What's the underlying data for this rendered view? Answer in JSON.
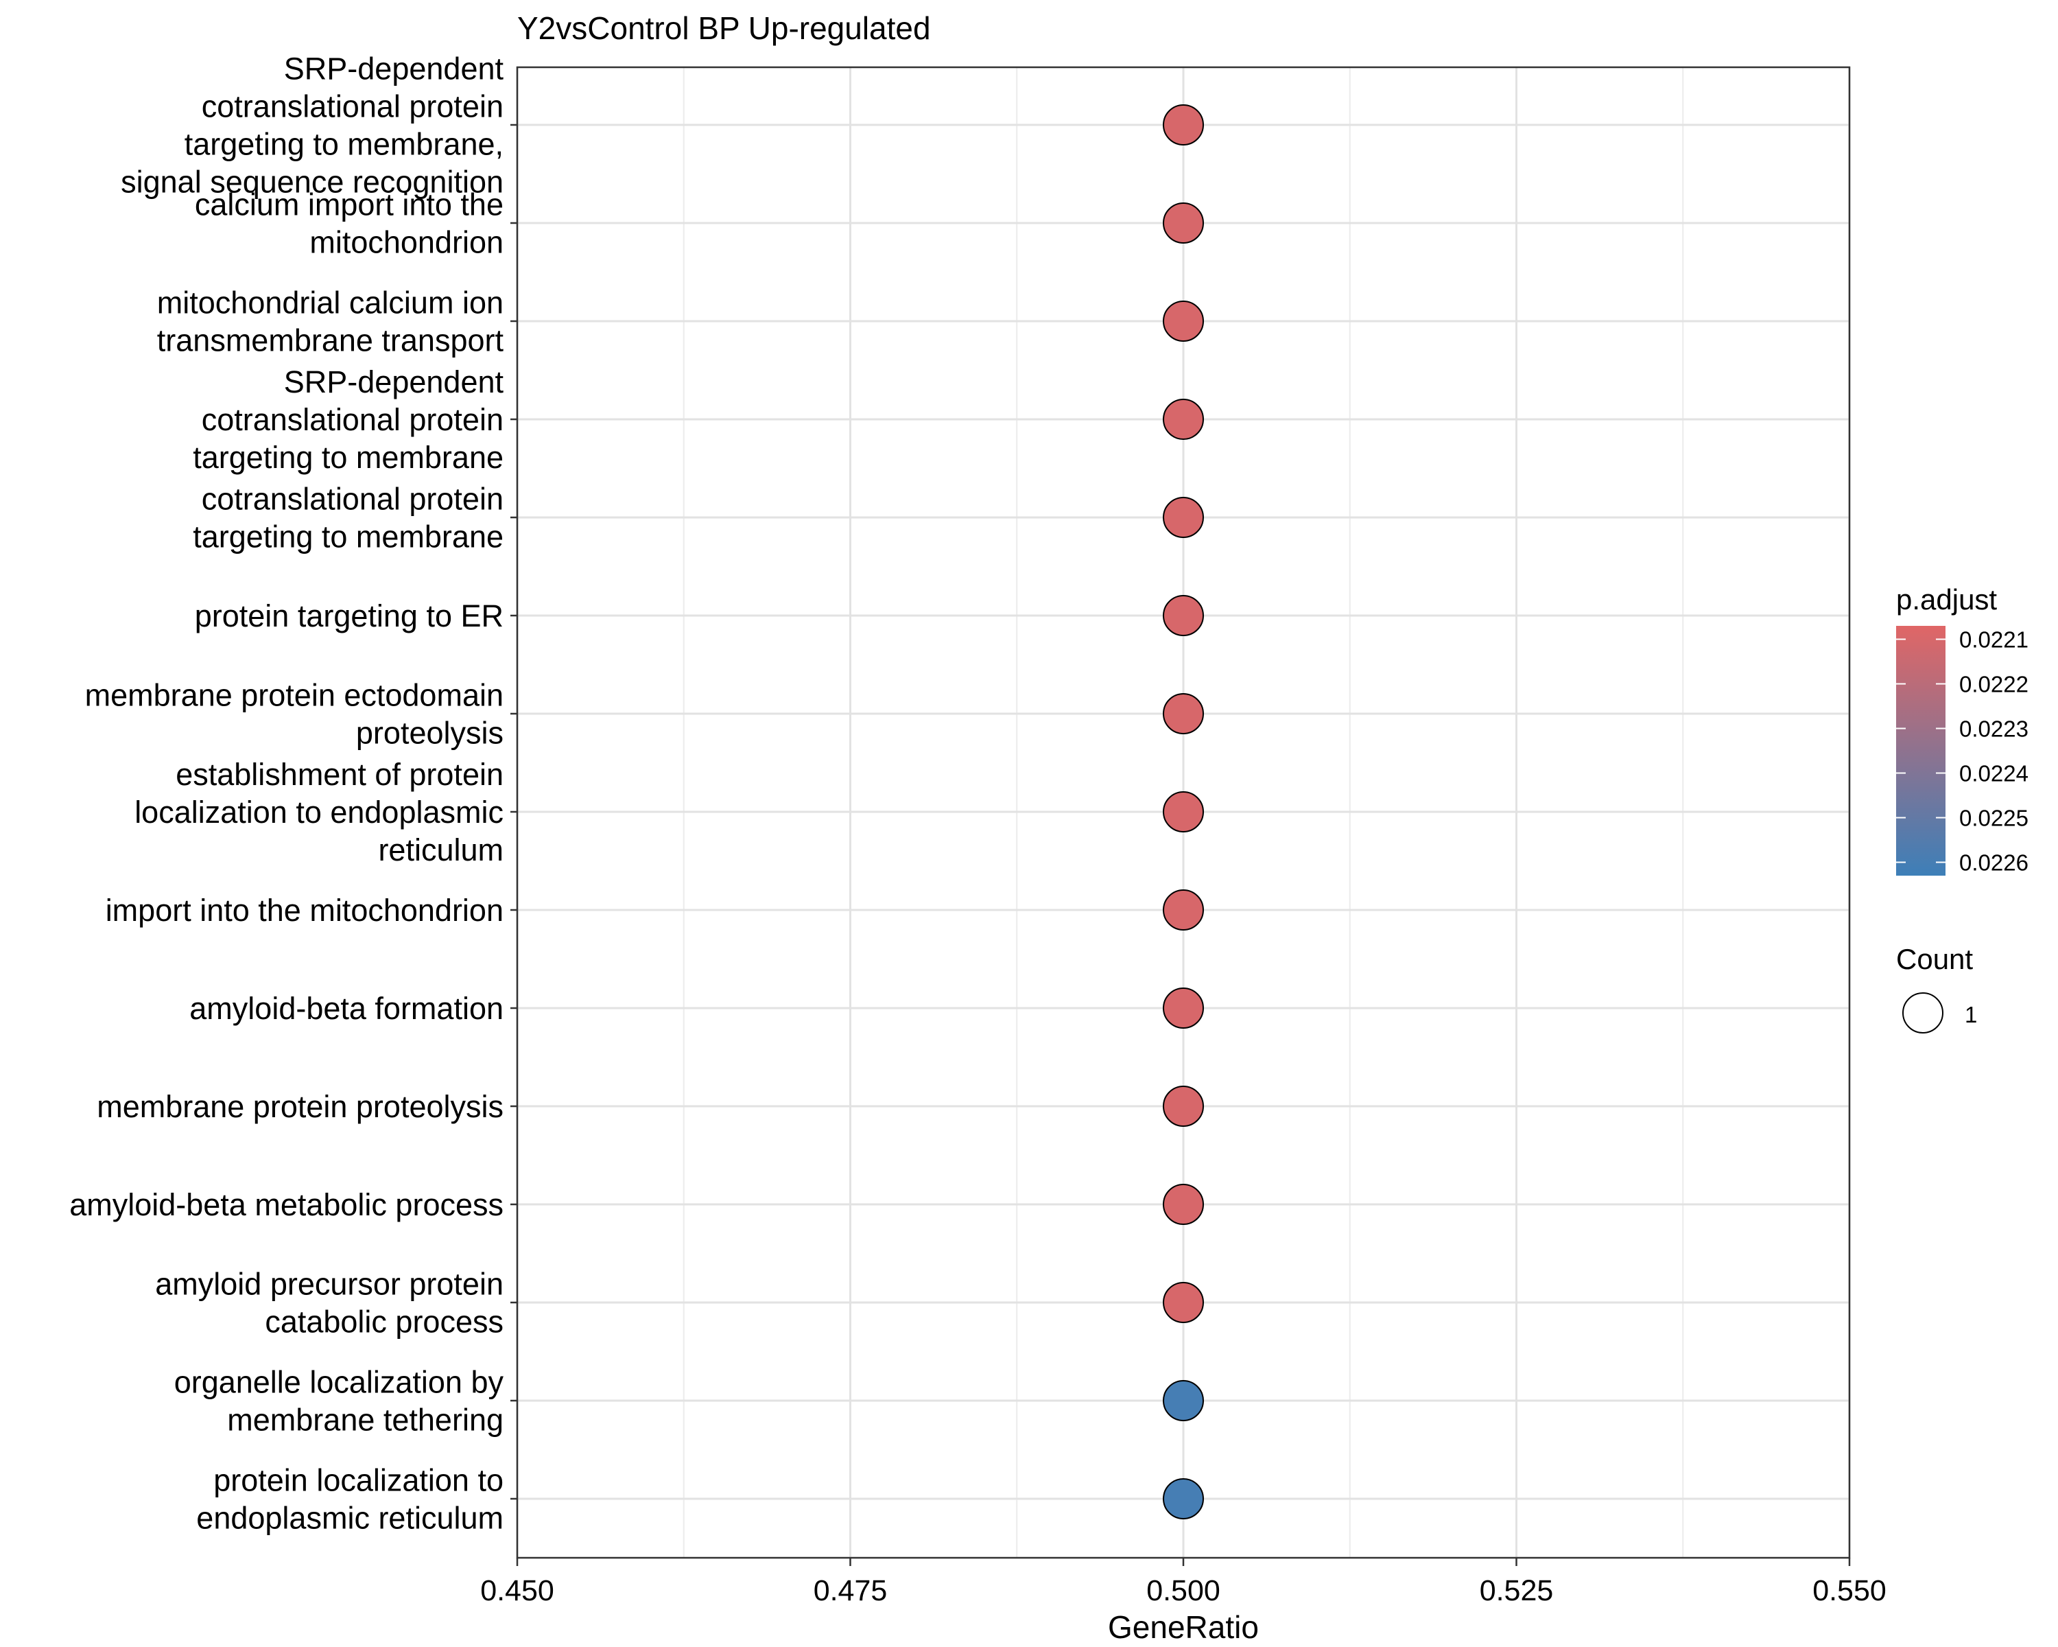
{
  "chart_data": {
    "type": "scatter",
    "title": "Y2vsControl BP Up-regulated",
    "xlabel": "GeneRatio",
    "ylabel": "",
    "xlim": [
      0.45,
      0.55
    ],
    "x_ticks": [
      "0.450",
      "0.475",
      "0.500",
      "0.525",
      "0.550"
    ],
    "x_tick_values": [
      0.45,
      0.475,
      0.5,
      0.525,
      0.55
    ],
    "grid": true,
    "legend_position": "right",
    "categories": [
      [
        "SRP-dependent",
        "cotranslational protein",
        "targeting to membrane,",
        "signal sequence recognition"
      ],
      [
        "calcium import into the",
        "mitochondrion"
      ],
      [
        "mitochondrial calcium ion",
        "transmembrane transport"
      ],
      [
        "SRP-dependent",
        "cotranslational protein",
        "targeting to membrane"
      ],
      [
        "cotranslational protein",
        "targeting to membrane"
      ],
      [
        "protein targeting to ER"
      ],
      [
        "membrane protein ectodomain",
        "proteolysis"
      ],
      [
        "establishment of protein",
        "localization to endoplasmic",
        "reticulum"
      ],
      [
        "import into the mitochondrion"
      ],
      [
        "amyloid-beta formation"
      ],
      [
        "membrane protein proteolysis"
      ],
      [
        "amyloid-beta metabolic process"
      ],
      [
        "amyloid precursor protein",
        "catabolic process"
      ],
      [
        "organelle localization by",
        "membrane tethering"
      ],
      [
        "protein localization to",
        "endoplasmic reticulum"
      ]
    ],
    "points": [
      {
        "x": 0.5,
        "count": 1,
        "p_adjust": 0.0221
      },
      {
        "x": 0.5,
        "count": 1,
        "p_adjust": 0.0221
      },
      {
        "x": 0.5,
        "count": 1,
        "p_adjust": 0.0221
      },
      {
        "x": 0.5,
        "count": 1,
        "p_adjust": 0.0221
      },
      {
        "x": 0.5,
        "count": 1,
        "p_adjust": 0.0221
      },
      {
        "x": 0.5,
        "count": 1,
        "p_adjust": 0.0221
      },
      {
        "x": 0.5,
        "count": 1,
        "p_adjust": 0.0221
      },
      {
        "x": 0.5,
        "count": 1,
        "p_adjust": 0.0221
      },
      {
        "x": 0.5,
        "count": 1,
        "p_adjust": 0.0221
      },
      {
        "x": 0.5,
        "count": 1,
        "p_adjust": 0.0221
      },
      {
        "x": 0.5,
        "count": 1,
        "p_adjust": 0.0221
      },
      {
        "x": 0.5,
        "count": 1,
        "p_adjust": 0.0221
      },
      {
        "x": 0.5,
        "count": 1,
        "p_adjust": 0.0221
      },
      {
        "x": 0.5,
        "count": 1,
        "p_adjust": 0.0226
      },
      {
        "x": 0.5,
        "count": 1,
        "p_adjust": 0.0226
      }
    ],
    "color_legend": {
      "title": "p.adjust",
      "low_color": "#E06666",
      "high_color": "#3D7FB8",
      "range": [
        0.02207,
        0.02263
      ],
      "ticks": [
        "0.0221",
        "0.0222",
        "0.0223",
        "0.0224",
        "0.0225",
        "0.0226"
      ],
      "tick_values": [
        0.0221,
        0.0222,
        0.0223,
        0.0224,
        0.0225,
        0.0226
      ]
    },
    "size_legend": {
      "title": "Count",
      "items": [
        "1"
      ]
    }
  }
}
